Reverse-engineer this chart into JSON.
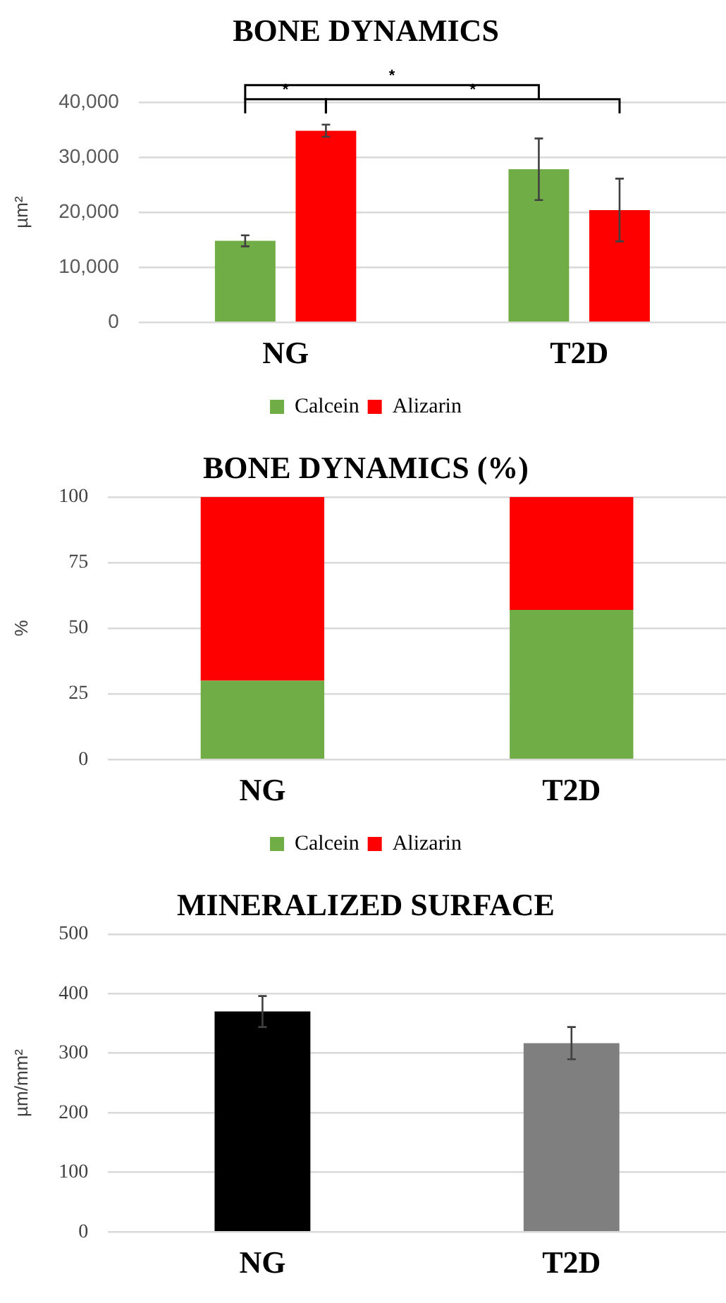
{
  "chart_data": [
    {
      "type": "bar",
      "title": "BONE DYNAMICS",
      "ylabel": "µm²",
      "categories": [
        "NG",
        "T2D"
      ],
      "series": [
        {
          "name": "Calcein",
          "color": "#70ad47",
          "values": [
            14800,
            27800
          ],
          "errors": [
            1000,
            5600
          ]
        },
        {
          "name": "Alizarin",
          "color": "#ff0000",
          "values": [
            34800,
            20400
          ],
          "errors": [
            1100,
            5700
          ]
        }
      ],
      "ylim": [
        0,
        40000
      ],
      "yticks": [
        {
          "value": 0,
          "label": "0"
        },
        {
          "value": 10000,
          "label": "10,000"
        },
        {
          "value": 20000,
          "label": "20,000"
        },
        {
          "value": 30000,
          "label": "30,000"
        },
        {
          "value": 40000,
          "label": "40,000"
        }
      ],
      "grid": "y",
      "legend": "bottom",
      "annotations": [
        "*",
        "*",
        "*"
      ]
    },
    {
      "type": "bar",
      "title": "BONE DYNAMICS (%)",
      "ylabel": "%",
      "categories": [
        "NG",
        "T2D"
      ],
      "stacked": true,
      "series": [
        {
          "name": "Calcein",
          "color": "#70ad47",
          "values": [
            30,
            57
          ]
        },
        {
          "name": "Alizarin",
          "color": "#ff0000",
          "values": [
            70,
            43
          ]
        }
      ],
      "ylim": [
        0,
        100
      ],
      "yticks": [
        0,
        25,
        50,
        75,
        100
      ],
      "grid": "y",
      "legend": "bottom"
    },
    {
      "type": "bar",
      "title": "MINERALIZED SURFACE",
      "ylabel": "µm/mm²",
      "categories": [
        "NG",
        "T2D"
      ],
      "values": [
        370,
        317
      ],
      "colors": [
        "#000000",
        "#7f7f7f"
      ],
      "errors": [
        26,
        27
      ],
      "ylim": [
        0,
        500
      ],
      "yticks": [
        0,
        100,
        200,
        300,
        400,
        500
      ],
      "grid": "y"
    }
  ]
}
